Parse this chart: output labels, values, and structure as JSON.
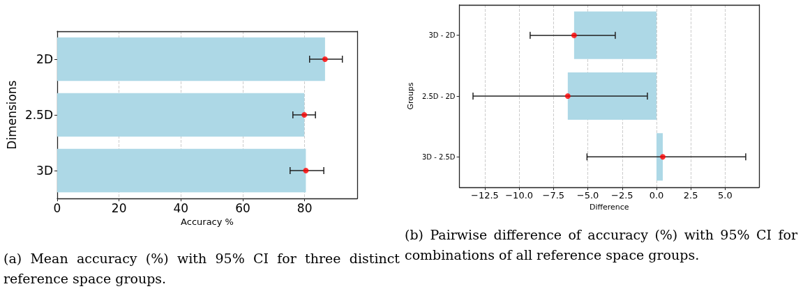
{
  "chart_data": [
    {
      "type": "bar",
      "orientation": "horizontal",
      "categories": [
        "2D",
        "2.5D",
        "3D"
      ],
      "xlabel": "Accuracy %",
      "ylabel": "Dimensions",
      "xlim": [
        0,
        97
      ],
      "xticks": [
        0,
        20,
        40,
        60,
        80
      ],
      "grid": "x",
      "series": [
        {
          "color": "#add8e6",
          "values": [
            86.6,
            79.9,
            80.4
          ],
          "errors": [
            [
              81.6,
              92.2
            ],
            [
              76.2,
              83.5
            ],
            [
              75.3,
              86.2
            ]
          ]
        },
        {
          "type": "scatter",
          "color": "#ff0000",
          "marker": "circle",
          "x": [
            "2D",
            "2.5D",
            "3D"
          ],
          "values": [
            86.6,
            79.9,
            80.4
          ]
        }
      ],
      "annotations": [
        "(a) Mean accuracy (%) with 95% CI for three distinct reference space groups."
      ]
    },
    {
      "type": "bar",
      "orientation": "horizontal",
      "categories": [
        "3D - 2D",
        "2.5D - 2D",
        "3D - 2.5D"
      ],
      "xlabel": "Difference",
      "ylabel": "Groups",
      "xlim": [
        -14.35,
        7.47
      ],
      "xticks": [
        {
          "value": -12.5,
          "label": "−12.5"
        },
        {
          "value": -10,
          "label": "−10.0"
        },
        {
          "value": -7.5,
          "label": "−7.5"
        },
        {
          "value": -5,
          "label": "−5.0"
        },
        {
          "value": -2.5,
          "label": "−2.5"
        },
        {
          "value": 0,
          "label": "0.0"
        },
        {
          "value": 2.5,
          "label": "2.5"
        },
        {
          "value": 5,
          "label": "5.0"
        }
      ],
      "grid": "x",
      "series": [
        {
          "color": "#add8e6",
          "values": [
            -6.0,
            -6.46,
            0.46
          ],
          "errors": [
            [
              -9.2,
              -3.0
            ],
            [
              -13.36,
              -0.66
            ],
            [
              -5.06,
              6.5
            ]
          ]
        },
        {
          "type": "scatter",
          "color": "#ff0000",
          "marker": "circle",
          "x": [
            "3D - 2D",
            "2.5D - 2D",
            "3D - 2.5D"
          ],
          "values": [
            -6.0,
            -6.46,
            0.46
          ]
        }
      ],
      "annotations": [
        "(b) Pairwise difference of accuracy (%) with 95% CI for combinations of all reference space groups."
      ]
    }
  ]
}
